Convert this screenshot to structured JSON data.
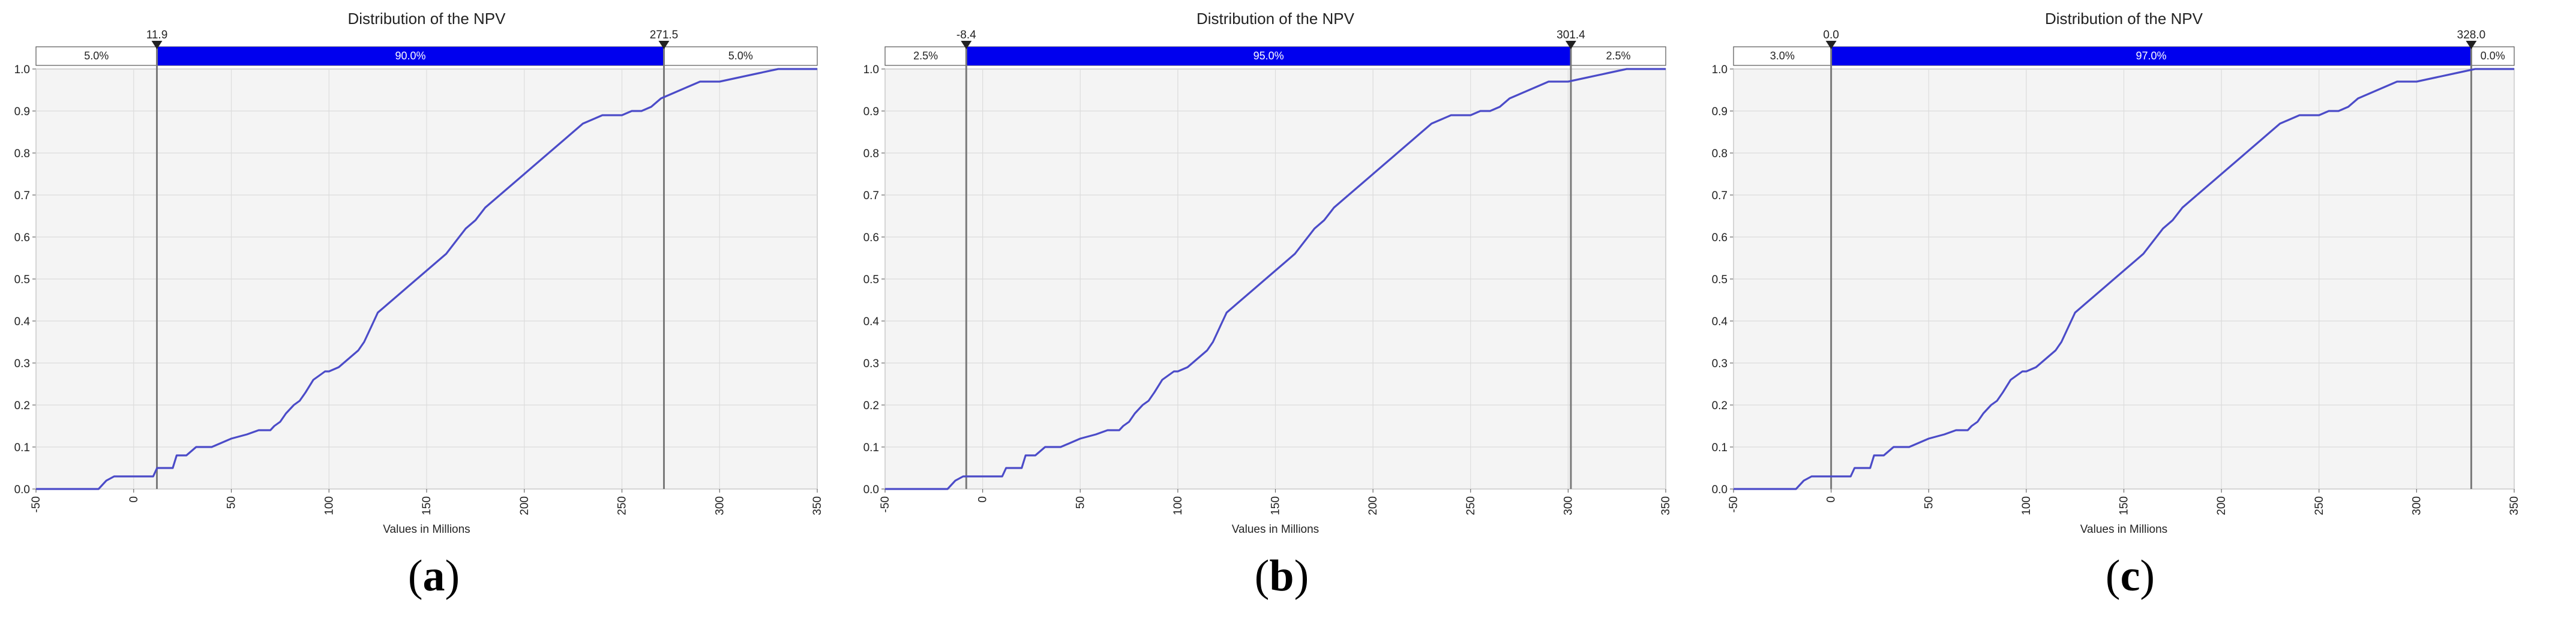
{
  "colors": {
    "curve": "#4b4bc8",
    "band_fill": "#0000ee",
    "band_text": "#ffffff",
    "plot_bg": "#f4f4f4",
    "grid": "#dcdcdc",
    "marker_line": "#7a7a7a",
    "text": "#222222"
  },
  "captions": [
    "a",
    "b",
    "c"
  ],
  "chart_data": [
    {
      "type": "line",
      "title": "Distribution of the NPV",
      "xlabel": "Values in Millions",
      "ylabel": "",
      "xlim": [
        -50,
        350
      ],
      "ylim": [
        0,
        1
      ],
      "xticks": [
        "-50",
        "0",
        "50",
        "100",
        "150",
        "200",
        "250",
        "300",
        "350"
      ],
      "yticks": [
        "0.0",
        "0.1",
        "0.2",
        "0.3",
        "0.4",
        "0.5",
        "0.6",
        "0.7",
        "0.8",
        "0.9",
        "1.0"
      ],
      "grid": true,
      "markers": [
        11.9,
        271.5
      ],
      "marker_labels": [
        "11.9",
        "271.5"
      ],
      "band_labels": [
        "5.0%",
        "90.0%",
        "5.0%"
      ],
      "series": [
        {
          "x": [
            -50,
            -18,
            -14,
            -10,
            -2,
            10,
            12,
            20,
            22,
            27,
            32,
            34,
            40,
            50,
            58,
            64,
            70,
            72,
            75,
            78,
            82,
            85,
            88,
            92,
            95,
            98,
            100,
            105,
            110,
            115,
            118,
            122,
            125,
            130,
            135,
            140,
            145,
            150,
            155,
            160,
            165,
            170,
            175,
            180,
            185,
            190,
            195,
            200,
            205,
            210,
            215,
            220,
            225,
            230,
            235,
            240,
            245,
            250,
            255,
            260,
            265,
            270,
            275,
            280,
            285,
            290,
            295,
            300,
            310,
            320,
            330,
            350
          ],
          "y": [
            0.0,
            0.0,
            0.02,
            0.03,
            0.03,
            0.03,
            0.05,
            0.05,
            0.08,
            0.08,
            0.1,
            0.1,
            0.1,
            0.12,
            0.13,
            0.14,
            0.14,
            0.15,
            0.16,
            0.18,
            0.2,
            0.21,
            0.23,
            0.26,
            0.27,
            0.28,
            0.28,
            0.29,
            0.31,
            0.33,
            0.35,
            0.39,
            0.42,
            0.44,
            0.46,
            0.48,
            0.5,
            0.52,
            0.54,
            0.56,
            0.59,
            0.62,
            0.64,
            0.67,
            0.69,
            0.71,
            0.73,
            0.75,
            0.77,
            0.79,
            0.81,
            0.83,
            0.85,
            0.87,
            0.88,
            0.89,
            0.89,
            0.89,
            0.9,
            0.9,
            0.91,
            0.93,
            0.94,
            0.95,
            0.96,
            0.97,
            0.97,
            0.97,
            0.98,
            0.99,
            1.0,
            1.0
          ]
        }
      ]
    },
    {
      "type": "line",
      "title": "Distribution of the NPV",
      "xlabel": "Values in Millions",
      "ylabel": "",
      "xlim": [
        -50,
        350
      ],
      "ylim": [
        0,
        1
      ],
      "xticks": [
        "-50",
        "0",
        "50",
        "100",
        "150",
        "200",
        "250",
        "300",
        "350"
      ],
      "yticks": [
        "0.0",
        "0.1",
        "0.2",
        "0.3",
        "0.4",
        "0.5",
        "0.6",
        "0.7",
        "0.8",
        "0.9",
        "1.0"
      ],
      "grid": true,
      "markers": [
        -8.4,
        301.4
      ],
      "marker_labels": [
        "-8.4",
        "301.4"
      ],
      "band_labels": [
        "2.5%",
        "95.0%",
        "2.5%"
      ],
      "series": [
        {
          "x": [
            -50,
            -18,
            -14,
            -10,
            -2,
            10,
            12,
            20,
            22,
            27,
            32,
            34,
            40,
            50,
            58,
            64,
            70,
            72,
            75,
            78,
            82,
            85,
            88,
            92,
            95,
            98,
            100,
            105,
            110,
            115,
            118,
            122,
            125,
            130,
            135,
            140,
            145,
            150,
            155,
            160,
            165,
            170,
            175,
            180,
            185,
            190,
            195,
            200,
            205,
            210,
            215,
            220,
            225,
            230,
            235,
            240,
            245,
            250,
            255,
            260,
            265,
            270,
            275,
            280,
            285,
            290,
            295,
            300,
            310,
            320,
            330,
            350
          ],
          "y": [
            0.0,
            0.0,
            0.02,
            0.03,
            0.03,
            0.03,
            0.05,
            0.05,
            0.08,
            0.08,
            0.1,
            0.1,
            0.1,
            0.12,
            0.13,
            0.14,
            0.14,
            0.15,
            0.16,
            0.18,
            0.2,
            0.21,
            0.23,
            0.26,
            0.27,
            0.28,
            0.28,
            0.29,
            0.31,
            0.33,
            0.35,
            0.39,
            0.42,
            0.44,
            0.46,
            0.48,
            0.5,
            0.52,
            0.54,
            0.56,
            0.59,
            0.62,
            0.64,
            0.67,
            0.69,
            0.71,
            0.73,
            0.75,
            0.77,
            0.79,
            0.81,
            0.83,
            0.85,
            0.87,
            0.88,
            0.89,
            0.89,
            0.89,
            0.9,
            0.9,
            0.91,
            0.93,
            0.94,
            0.95,
            0.96,
            0.97,
            0.97,
            0.97,
            0.98,
            0.99,
            1.0,
            1.0
          ]
        }
      ]
    },
    {
      "type": "line",
      "title": "Distribution of the NPV",
      "xlabel": "Values in Millions",
      "ylabel": "",
      "xlim": [
        -50,
        350
      ],
      "ylim": [
        0,
        1
      ],
      "xticks": [
        "-50",
        "0",
        "50",
        "100",
        "150",
        "200",
        "250",
        "300",
        "350"
      ],
      "yticks": [
        "0.0",
        "0.1",
        "0.2",
        "0.3",
        "0.4",
        "0.5",
        "0.6",
        "0.7",
        "0.8",
        "0.9",
        "1.0"
      ],
      "grid": true,
      "markers": [
        0.0,
        328.0
      ],
      "marker_labels": [
        "0.0",
        "328.0"
      ],
      "band_labels": [
        "3.0%",
        "97.0%",
        "0.0%"
      ],
      "series": [
        {
          "x": [
            -50,
            -18,
            -14,
            -10,
            -2,
            10,
            12,
            20,
            22,
            27,
            32,
            34,
            40,
            50,
            58,
            64,
            70,
            72,
            75,
            78,
            82,
            85,
            88,
            92,
            95,
            98,
            100,
            105,
            110,
            115,
            118,
            122,
            125,
            130,
            135,
            140,
            145,
            150,
            155,
            160,
            165,
            170,
            175,
            180,
            185,
            190,
            195,
            200,
            205,
            210,
            215,
            220,
            225,
            230,
            235,
            240,
            245,
            250,
            255,
            260,
            265,
            270,
            275,
            280,
            285,
            290,
            295,
            300,
            310,
            320,
            330,
            350
          ],
          "y": [
            0.0,
            0.0,
            0.02,
            0.03,
            0.03,
            0.03,
            0.05,
            0.05,
            0.08,
            0.08,
            0.1,
            0.1,
            0.1,
            0.12,
            0.13,
            0.14,
            0.14,
            0.15,
            0.16,
            0.18,
            0.2,
            0.21,
            0.23,
            0.26,
            0.27,
            0.28,
            0.28,
            0.29,
            0.31,
            0.33,
            0.35,
            0.39,
            0.42,
            0.44,
            0.46,
            0.48,
            0.5,
            0.52,
            0.54,
            0.56,
            0.59,
            0.62,
            0.64,
            0.67,
            0.69,
            0.71,
            0.73,
            0.75,
            0.77,
            0.79,
            0.81,
            0.83,
            0.85,
            0.87,
            0.88,
            0.89,
            0.89,
            0.89,
            0.9,
            0.9,
            0.91,
            0.93,
            0.94,
            0.95,
            0.96,
            0.97,
            0.97,
            0.97,
            0.98,
            0.99,
            1.0,
            1.0
          ]
        }
      ]
    }
  ]
}
